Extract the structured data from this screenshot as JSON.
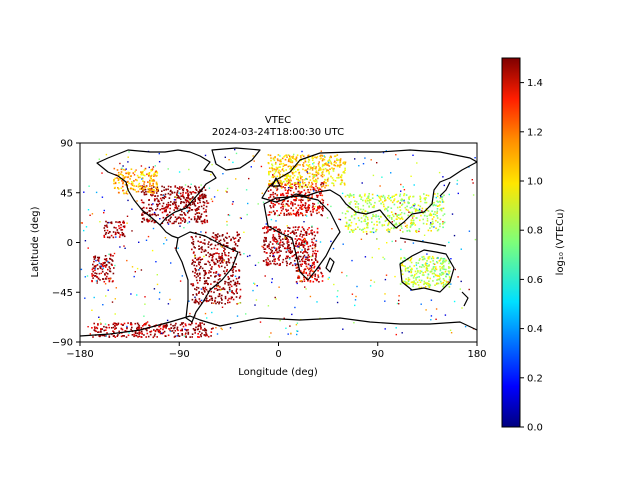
{
  "chart_data": {
    "type": "scatter",
    "title": "VTEC",
    "subtitle": "2024-03-24T18:00:30 UTC",
    "xlabel": "Longitude (deg)",
    "ylabel": "Latitude (deg)",
    "xlim": [
      -180,
      180
    ],
    "ylim": [
      -90,
      90
    ],
    "xticks": [
      -180,
      -90,
      0,
      90,
      180
    ],
    "yticks": [
      -90,
      -45,
      0,
      45,
      90
    ],
    "grid": false,
    "colorbar": {
      "label": "log₁₀ (VTECu)",
      "range": [
        0.0,
        1.5
      ],
      "ticks": [
        "0.0",
        "0.2",
        "0.4",
        "0.6",
        "0.8",
        "1.0",
        "1.2",
        "1.4"
      ],
      "colormap": "jet"
    },
    "regions": [
      {
        "lon": [
          -125,
          -65
        ],
        "lat": [
          18,
          52
        ],
        "value": 1.5
      },
      {
        "lon": [
          -150,
          -110
        ],
        "lat": [
          45,
          68
        ],
        "value": 1.05
      },
      {
        "lon": [
          -80,
          -35
        ],
        "lat": [
          -55,
          10
        ],
        "value": 1.5
      },
      {
        "lon": [
          -170,
          -60
        ],
        "lat": [
          -85,
          -72
        ],
        "value": 1.45
      },
      {
        "lon": [
          -10,
          40
        ],
        "lat": [
          25,
          55
        ],
        "value": 1.35
      },
      {
        "lon": [
          -10,
          60
        ],
        "lat": [
          50,
          80
        ],
        "value": 1.0
      },
      {
        "lon": [
          15,
          40
        ],
        "lat": [
          -35,
          -20
        ],
        "value": 1.35
      },
      {
        "lon": [
          -15,
          35
        ],
        "lat": [
          -20,
          15
        ],
        "value": 1.45
      },
      {
        "lon": [
          110,
          155
        ],
        "lat": [
          -40,
          -12
        ],
        "value": 0.85
      },
      {
        "lon": [
          60,
          150
        ],
        "lat": [
          10,
          45
        ],
        "value": 0.85
      },
      {
        "lon": [
          -170,
          -150
        ],
        "lat": [
          -35,
          -10
        ],
        "value": 1.45
      },
      {
        "lon": [
          -160,
          -140
        ],
        "lat": [
          5,
          20
        ],
        "value": 1.45
      }
    ]
  }
}
